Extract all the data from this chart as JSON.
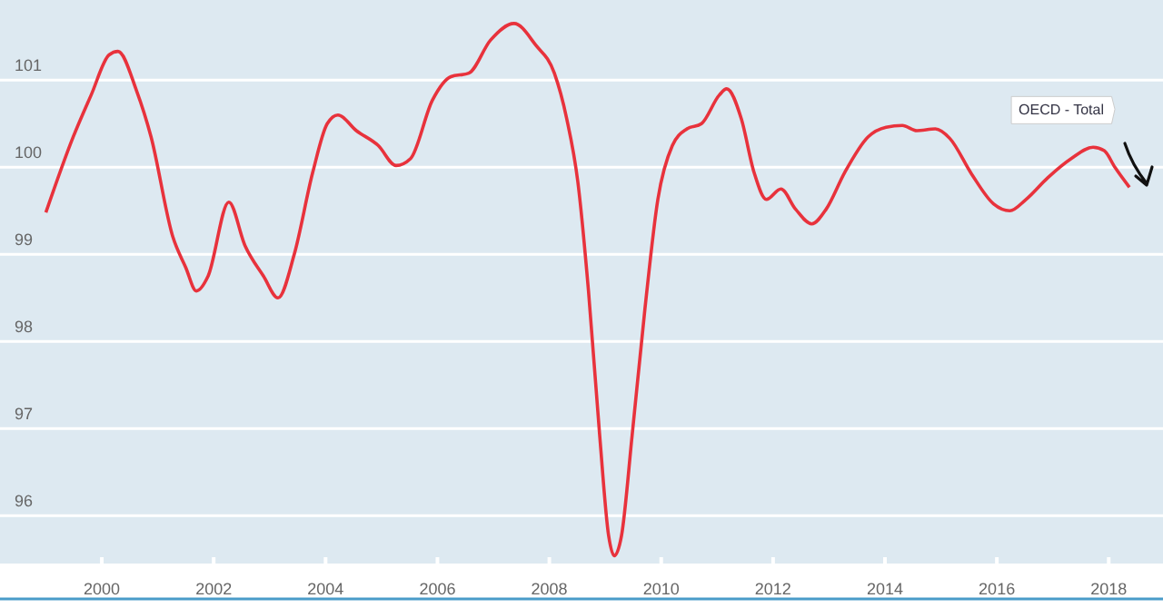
{
  "chart_data": {
    "type": "line",
    "x": [
      1999.0,
      1999.49,
      1999.81,
      2000.13,
      2000.29,
      2000.62,
      2000.88,
      2001.27,
      2001.5,
      2001.69,
      2001.9,
      2002.27,
      2002.56,
      2002.89,
      2003.15,
      2003.44,
      2003.77,
      2004.03,
      2004.22,
      2004.55,
      2004.94,
      2005.26,
      2005.52,
      2005.91,
      2006.24,
      2006.56,
      2006.95,
      2007.37,
      2007.76,
      2008.09,
      2008.31,
      2008.51,
      2008.7,
      2008.9,
      2009.06,
      2009.16,
      2009.29,
      2009.48,
      2009.71,
      2009.94,
      2010.2,
      2010.46,
      2010.72,
      2011.04,
      2011.17,
      2011.43,
      2011.66,
      2011.88,
      2012.14,
      2012.4,
      2012.69,
      2012.95,
      2013.28,
      2013.7,
      2014.02,
      2014.31,
      2014.57,
      2014.9,
      2015.16,
      2015.55,
      2015.94,
      2016.23,
      2016.52,
      2016.91,
      2017.33,
      2017.72,
      2017.92,
      2018.11,
      2018.37
    ],
    "series": [
      {
        "name": "OECD - Total",
        "color": "#e8323c",
        "values": [
          99.48,
          100.35,
          100.83,
          101.29,
          101.33,
          100.88,
          100.35,
          99.2,
          98.85,
          98.58,
          98.75,
          99.6,
          99.1,
          98.75,
          98.5,
          99.0,
          99.94,
          100.5,
          100.6,
          100.42,
          100.25,
          100.02,
          100.1,
          100.77,
          101.04,
          101.08,
          101.46,
          101.65,
          101.4,
          101.08,
          100.56,
          99.83,
          98.58,
          96.92,
          95.77,
          95.54,
          95.77,
          96.92,
          98.38,
          99.63,
          100.25,
          100.44,
          100.5,
          100.83,
          100.9,
          100.56,
          99.94,
          99.63,
          99.75,
          99.52,
          99.35,
          99.52,
          99.94,
          100.35,
          100.46,
          100.48,
          100.42,
          100.44,
          100.33,
          99.92,
          99.58,
          99.5,
          99.63,
          99.88,
          100.1,
          100.23,
          100.19,
          100.0,
          99.77
        ]
      }
    ],
    "xlim": [
      1998.18,
      2018.97
    ],
    "ylim": [
      95.44,
      101.92
    ],
    "xticks": [
      2000,
      2002,
      2004,
      2006,
      2008,
      2010,
      2012,
      2014,
      2016,
      2018
    ],
    "yticks": [
      96,
      97,
      98,
      99,
      100,
      101
    ],
    "grid": "y",
    "legend": false,
    "marker": "none",
    "line_style": "solid"
  }
}
